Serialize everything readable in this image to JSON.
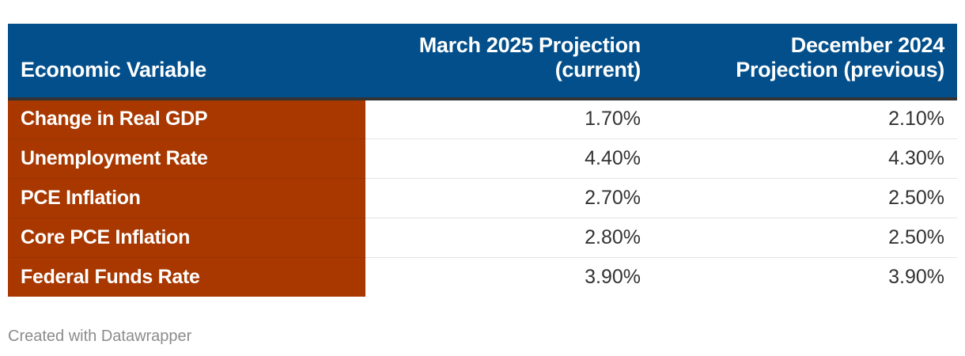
{
  "chart_data": {
    "type": "table",
    "columns": [
      "Economic Variable",
      "March 2025 Projection (current)",
      "December 2024 Projection (previous)"
    ],
    "header_lines": [
      [
        "Economic Variable"
      ],
      [
        "March 2025 Projection",
        "(current)"
      ],
      [
        "December 2024",
        "Projection (previous)"
      ]
    ],
    "rows": [
      {
        "variable": "Change in Real GDP",
        "march_2025": "1.70%",
        "december_2024": "2.10%"
      },
      {
        "variable": "Unemployment Rate",
        "march_2025": "4.40%",
        "december_2024": "4.30%"
      },
      {
        "variable": "PCE Inflation",
        "march_2025": "2.70%",
        "december_2024": "2.50%"
      },
      {
        "variable": "Core PCE Inflation",
        "march_2025": "2.80%",
        "december_2024": "2.50%"
      },
      {
        "variable": "Federal Funds Rate",
        "march_2025": "3.90%",
        "december_2024": "3.90%"
      }
    ]
  },
  "colors": {
    "header_bg": "#034f8b",
    "label_bg": "#a83800",
    "header_text": "#ffffff",
    "value_text": "#333333"
  },
  "footer": {
    "credit": "Created with Datawrapper"
  }
}
